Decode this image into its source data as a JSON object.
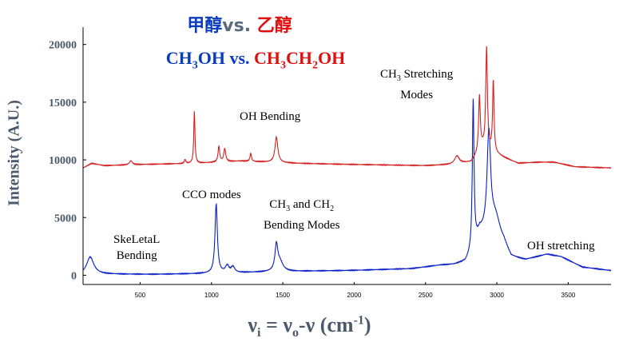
{
  "titles": {
    "cn_a": "甲醇",
    "cn_vs": "vs. ",
    "cn_b": "乙醇",
    "en_a_1": "CH",
    "en_a_2": "3",
    "en_a_3": "OH",
    "en_vs": " vs. ",
    "en_b_1": "CH",
    "en_b_2": "3",
    "en_b_3": "CH",
    "en_b_4": "2",
    "en_b_5": "OH"
  },
  "annotations": {
    "oh_bending": "OH Bending",
    "ch3_stretch_1": "CH",
    "ch3_stretch_sub": "3",
    "ch3_stretch_2": " Stretching",
    "ch3_stretch_3": "Modes",
    "cco": "CCO modes",
    "ch3ch2_1": "CH",
    "ch3ch2_sub1": "3",
    "ch3ch2_2": " and CH",
    "ch3ch2_sub2": "2",
    "ch3ch2_3": "Bending Modes",
    "skeletal_1": "SkeLetaL",
    "skeletal_2": "Bending",
    "oh_stretch": "OH stretching"
  },
  "axis": {
    "ylabel": "Intensity (A.U.)",
    "xlabel_1": "ν",
    "xlabel_sub1": "i",
    "xlabel_2": " = ν",
    "xlabel_sub2": "o",
    "xlabel_3": "-ν (cm",
    "xlabel_sup": "-1",
    "xlabel_4": ")"
  },
  "chart_data": {
    "type": "line",
    "xlim": [
      100,
      3800
    ],
    "ylim": [
      -800,
      21500
    ],
    "yticks": [
      0,
      5000,
      10000,
      15000,
      20000
    ],
    "xticks": [
      500,
      1000,
      1500,
      2000,
      2500,
      3000,
      3500
    ],
    "grid": false,
    "colors": {
      "methanol": "#0a1ec8",
      "ethanol": "#d42020"
    },
    "series": [
      {
        "key": "methanol",
        "baseline": [
          [
            100,
            50
          ],
          [
            180,
            100
          ],
          [
            600,
            80
          ],
          [
            1000,
            150
          ],
          [
            1200,
            220
          ],
          [
            1500,
            320
          ],
          [
            2000,
            420
          ],
          [
            2400,
            560
          ],
          [
            2600,
            850
          ],
          [
            2700,
            900
          ],
          [
            2780,
            1100
          ],
          [
            2820,
            1800
          ],
          [
            2880,
            3600
          ],
          [
            3050,
            2600
          ],
          [
            3100,
            1500
          ],
          [
            3200,
            1300
          ],
          [
            3350,
            1800
          ],
          [
            3450,
            1600
          ],
          [
            3600,
            700
          ],
          [
            3800,
            400
          ]
        ],
        "peaks": [
          [
            150,
            1500,
            30
          ],
          [
            1033,
            6000,
            10
          ],
          [
            1110,
            600,
            15
          ],
          [
            1150,
            500,
            15
          ],
          [
            1455,
            2200,
            12
          ],
          [
            1480,
            800,
            25
          ],
          [
            2834,
            12800,
            7
          ],
          [
            2944,
            8700,
            15
          ],
          [
            2990,
            2000,
            40
          ]
        ]
      },
      {
        "key": "ethanol",
        "baseline": [
          [
            100,
            9300
          ],
          [
            160,
            9700
          ],
          [
            250,
            9500
          ],
          [
            500,
            9600
          ],
          [
            900,
            9700
          ],
          [
            1200,
            9900
          ],
          [
            1400,
            9800
          ],
          [
            1600,
            9700
          ],
          [
            2000,
            9600
          ],
          [
            2500,
            9500
          ],
          [
            2700,
            9600
          ],
          [
            2820,
            9800
          ],
          [
            2900,
            11000
          ],
          [
            3050,
            10200
          ],
          [
            3150,
            9700
          ],
          [
            3300,
            9800
          ],
          [
            3400,
            9800
          ],
          [
            3550,
            9400
          ],
          [
            3800,
            9300
          ]
        ],
        "peaks": [
          [
            435,
            350,
            12
          ],
          [
            815,
            350,
            6
          ],
          [
            880,
            4500,
            5
          ],
          [
            1052,
            1350,
            7
          ],
          [
            1093,
            1150,
            8
          ],
          [
            1275,
            700,
            6
          ],
          [
            1455,
            2200,
            12
          ],
          [
            2720,
            700,
            20
          ],
          [
            2878,
            4800,
            7
          ],
          [
            2928,
            8800,
            7
          ],
          [
            2975,
            6200,
            6
          ]
        ]
      }
    ]
  }
}
